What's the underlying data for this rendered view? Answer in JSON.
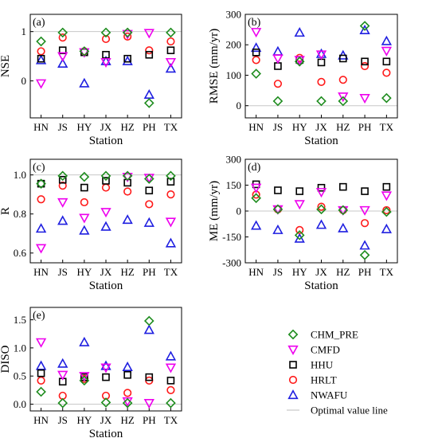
{
  "series_styles": [
    {
      "name": "CHM_PRE",
      "marker": "diamond",
      "color": "#1e8c1e"
    },
    {
      "name": "CMFD",
      "marker": "triangle-down",
      "color": "#ee00ee"
    },
    {
      "name": "HHU",
      "marker": "square",
      "color": "#000000"
    },
    {
      "name": "HRLT",
      "marker": "circle",
      "color": "#ff1a1a"
    },
    {
      "name": "NWAFU",
      "marker": "triangle-up",
      "color": "#1f1fe0"
    }
  ],
  "optimal_line": {
    "label": "Optimal value line",
    "color": "#c8c8c8"
  },
  "chart_data": [
    {
      "type": "scatter",
      "panel_label": "(a)",
      "title": "",
      "xlabel": "Station",
      "ylabel": "NSE",
      "categories": [
        "HN",
        "JS",
        "HY",
        "JX",
        "HZ",
        "PH",
        "TX"
      ],
      "ylim": [
        -0.75,
        1.35
      ],
      "yticks": [
        0,
        1
      ],
      "ytick_labels": [
        "0",
        "1"
      ],
      "optimal_value": 1,
      "grid": false,
      "series": [
        {
          "name": "CHM_PRE",
          "values": [
            0.8,
            0.98,
            0.6,
            0.98,
            0.98,
            -0.45,
            0.98
          ]
        },
        {
          "name": "CMFD",
          "values": [
            -0.05,
            0.5,
            0.58,
            0.38,
            0.95,
            0.97,
            0.38
          ]
        },
        {
          "name": "HHU",
          "values": [
            0.45,
            0.62,
            0.58,
            0.53,
            0.45,
            0.53,
            0.62
          ]
        },
        {
          "name": "HRLT",
          "values": [
            0.6,
            0.88,
            0.6,
            0.85,
            0.9,
            0.62,
            0.8
          ]
        },
        {
          "name": "NWAFU",
          "values": [
            0.42,
            0.35,
            -0.05,
            0.4,
            0.4,
            -0.28,
            0.25
          ]
        }
      ]
    },
    {
      "type": "scatter",
      "panel_label": "(b)",
      "title": "",
      "xlabel": "Station",
      "ylabel": "RMSE (mm/yr)",
      "categories": [
        "HN",
        "JS",
        "HY",
        "JX",
        "HZ",
        "PH",
        "TX"
      ],
      "ylim": [
        -40,
        300
      ],
      "yticks": [
        0,
        100,
        200,
        300
      ],
      "ytick_labels": [
        "0",
        "100",
        "200",
        "300"
      ],
      "optimal_value": 0,
      "grid": false,
      "series": [
        {
          "name": "CHM_PRE",
          "values": [
            105,
            15,
            145,
            15,
            15,
            262,
            25
          ]
        },
        {
          "name": "CMFD",
          "values": [
            242,
            155,
            150,
            168,
            30,
            25,
            180
          ]
        },
        {
          "name": "HHU",
          "values": [
            175,
            130,
            150,
            142,
            155,
            145,
            145
          ]
        },
        {
          "name": "HRLT",
          "values": [
            150,
            72,
            157,
            78,
            85,
            130,
            108
          ]
        },
        {
          "name": "NWAFU",
          "values": [
            190,
            178,
            240,
            170,
            165,
            248,
            212
          ]
        }
      ]
    },
    {
      "type": "scatter",
      "panel_label": "(c)",
      "title": "",
      "xlabel": "Station",
      "ylabel": "R",
      "categories": [
        "HN",
        "JS",
        "HY",
        "JX",
        "HZ",
        "PH",
        "TX"
      ],
      "ylim": [
        0.55,
        1.08
      ],
      "yticks": [
        0.6,
        0.8,
        1.0
      ],
      "ytick_labels": [
        "0.6",
        "0.8",
        "1.0"
      ],
      "optimal_value": 1,
      "grid": false,
      "series": [
        {
          "name": "CHM_PRE",
          "values": [
            0.955,
            0.995,
            0.99,
            0.995,
            0.995,
            0.98,
            0.995
          ]
        },
        {
          "name": "CMFD",
          "values": [
            0.625,
            0.86,
            0.78,
            0.81,
            0.99,
            0.985,
            0.76
          ]
        },
        {
          "name": "HHU",
          "values": [
            0.955,
            0.975,
            0.935,
            0.97,
            0.96,
            0.92,
            0.965
          ]
        },
        {
          "name": "HRLT",
          "values": [
            0.875,
            0.945,
            0.86,
            0.935,
            0.915,
            0.85,
            0.9
          ]
        },
        {
          "name": "NWAFU",
          "values": [
            0.725,
            0.765,
            0.715,
            0.735,
            0.77,
            0.755,
            0.65
          ]
        }
      ]
    },
    {
      "type": "scatter",
      "panel_label": "(d)",
      "title": "",
      "xlabel": "Station",
      "ylabel": "ME (mm/yr)",
      "categories": [
        "HN",
        "JS",
        "HY",
        "JX",
        "HZ",
        "PH",
        "TX"
      ],
      "ylim": [
        -300,
        300
      ],
      "yticks": [
        -300,
        -150,
        0,
        150,
        300
      ],
      "ytick_labels": [
        "-300",
        "-150",
        "0",
        "150",
        "300"
      ],
      "optimal_value": 0,
      "grid": false,
      "series": [
        {
          "name": "CHM_PRE",
          "values": [
            75,
            10,
            -140,
            10,
            5,
            -255,
            -5
          ]
        },
        {
          "name": "CMFD",
          "values": [
            135,
            10,
            40,
            110,
            5,
            5,
            90
          ]
        },
        {
          "name": "HHU",
          "values": [
            155,
            120,
            115,
            135,
            140,
            115,
            140
          ]
        },
        {
          "name": "HRLT",
          "values": [
            95,
            10,
            -110,
            25,
            5,
            -70,
            5
          ]
        },
        {
          "name": "NWAFU",
          "values": [
            -85,
            -110,
            -160,
            -80,
            -100,
            -200,
            -105
          ]
        }
      ]
    },
    {
      "type": "scatter",
      "panel_label": "(e)",
      "title": "",
      "xlabel": "Station",
      "ylabel": "DISO",
      "categories": [
        "HN",
        "JS",
        "HY",
        "JX",
        "HZ",
        "PH",
        "TX"
      ],
      "ylim": [
        -0.12,
        1.72
      ],
      "yticks": [
        0.0,
        0.5,
        1.0,
        1.5
      ],
      "ytick_labels": [
        "0.0",
        "0.5",
        "1.0",
        "1.5"
      ],
      "optimal_value": 0,
      "grid": false,
      "series": [
        {
          "name": "CHM_PRE",
          "values": [
            0.22,
            0.02,
            0.42,
            0.03,
            0.02,
            1.48,
            0.02
          ]
        },
        {
          "name": "CMFD",
          "values": [
            1.1,
            0.52,
            0.5,
            0.65,
            0.05,
            0.02,
            0.65
          ]
        },
        {
          "name": "HHU",
          "values": [
            0.55,
            0.4,
            0.48,
            0.48,
            0.52,
            0.48,
            0.42
          ]
        },
        {
          "name": "HRLT",
          "values": [
            0.42,
            0.15,
            0.45,
            0.15,
            0.2,
            0.42,
            0.25
          ]
        },
        {
          "name": "NWAFU",
          "values": [
            0.68,
            0.72,
            1.1,
            0.68,
            0.66,
            1.32,
            0.85
          ]
        }
      ]
    }
  ]
}
